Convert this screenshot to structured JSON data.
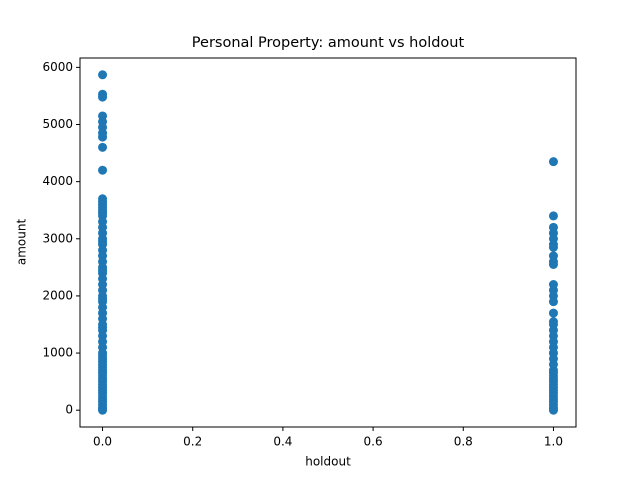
{
  "chart_data": {
    "type": "scatter",
    "title": "Personal Property: amount vs holdout",
    "x_label": "holdout",
    "y_label": "amount",
    "color": "#1f77b4",
    "x": [
      0,
      0,
      0,
      0,
      0,
      0,
      0,
      0,
      0,
      0,
      0,
      0,
      0,
      0,
      0,
      0,
      0,
      0,
      0,
      0,
      0,
      0,
      0,
      0,
      0,
      0,
      0,
      0,
      0,
      0,
      0,
      0,
      0,
      0,
      0,
      0,
      0,
      0,
      0,
      0,
      0,
      0,
      0,
      0,
      0,
      0,
      0,
      0,
      0,
      0,
      0,
      0,
      0,
      0,
      0,
      0,
      0,
      0,
      0,
      0,
      0,
      0,
      0,
      0,
      0,
      0,
      1,
      1,
      1,
      1,
      1,
      1,
      1,
      1,
      1,
      1,
      1,
      1,
      1,
      1,
      1,
      1,
      1,
      1,
      1,
      1,
      1,
      1,
      1,
      1,
      1,
      1,
      1,
      1,
      1,
      1,
      1,
      1,
      1,
      1,
      1,
      1,
      1,
      1,
      1,
      1
    ],
    "values": [
      5870,
      5530,
      5480,
      5150,
      5050,
      4950,
      4850,
      4780,
      4600,
      4200,
      3700,
      3650,
      3600,
      3550,
      3500,
      3450,
      3400,
      3300,
      3200,
      3100,
      3000,
      2950,
      2900,
      2800,
      2700,
      2600,
      2500,
      2450,
      2400,
      2300,
      2200,
      2100,
      2000,
      1950,
      1900,
      1800,
      1700,
      1600,
      1500,
      1450,
      1400,
      1300,
      1200,
      1100,
      1000,
      950,
      900,
      850,
      800,
      750,
      700,
      650,
      600,
      550,
      500,
      450,
      400,
      350,
      300,
      250,
      200,
      150,
      100,
      50,
      20,
      0,
      4350,
      3400,
      3200,
      3100,
      3000,
      2900,
      2850,
      2700,
      2600,
      2550,
      2200,
      2100,
      2000,
      1900,
      1700,
      1550,
      1500,
      1400,
      1300,
      1200,
      1100,
      1000,
      900,
      800,
      700,
      650,
      600,
      550,
      500,
      450,
      400,
      350,
      300,
      250,
      200,
      150,
      100,
      50,
      20,
      0
    ],
    "xlim": [
      -0.05,
      1.05
    ],
    "ylim": [
      -294,
      6164
    ],
    "xticks": [
      {
        "value": 0,
        "label": "0.0"
      },
      0.2,
      0.4,
      0.6,
      0.8,
      {
        "value": 1,
        "label": "1.0"
      }
    ],
    "yticks": [
      0,
      1000,
      2000,
      3000,
      4000,
      5000,
      6000
    ]
  }
}
